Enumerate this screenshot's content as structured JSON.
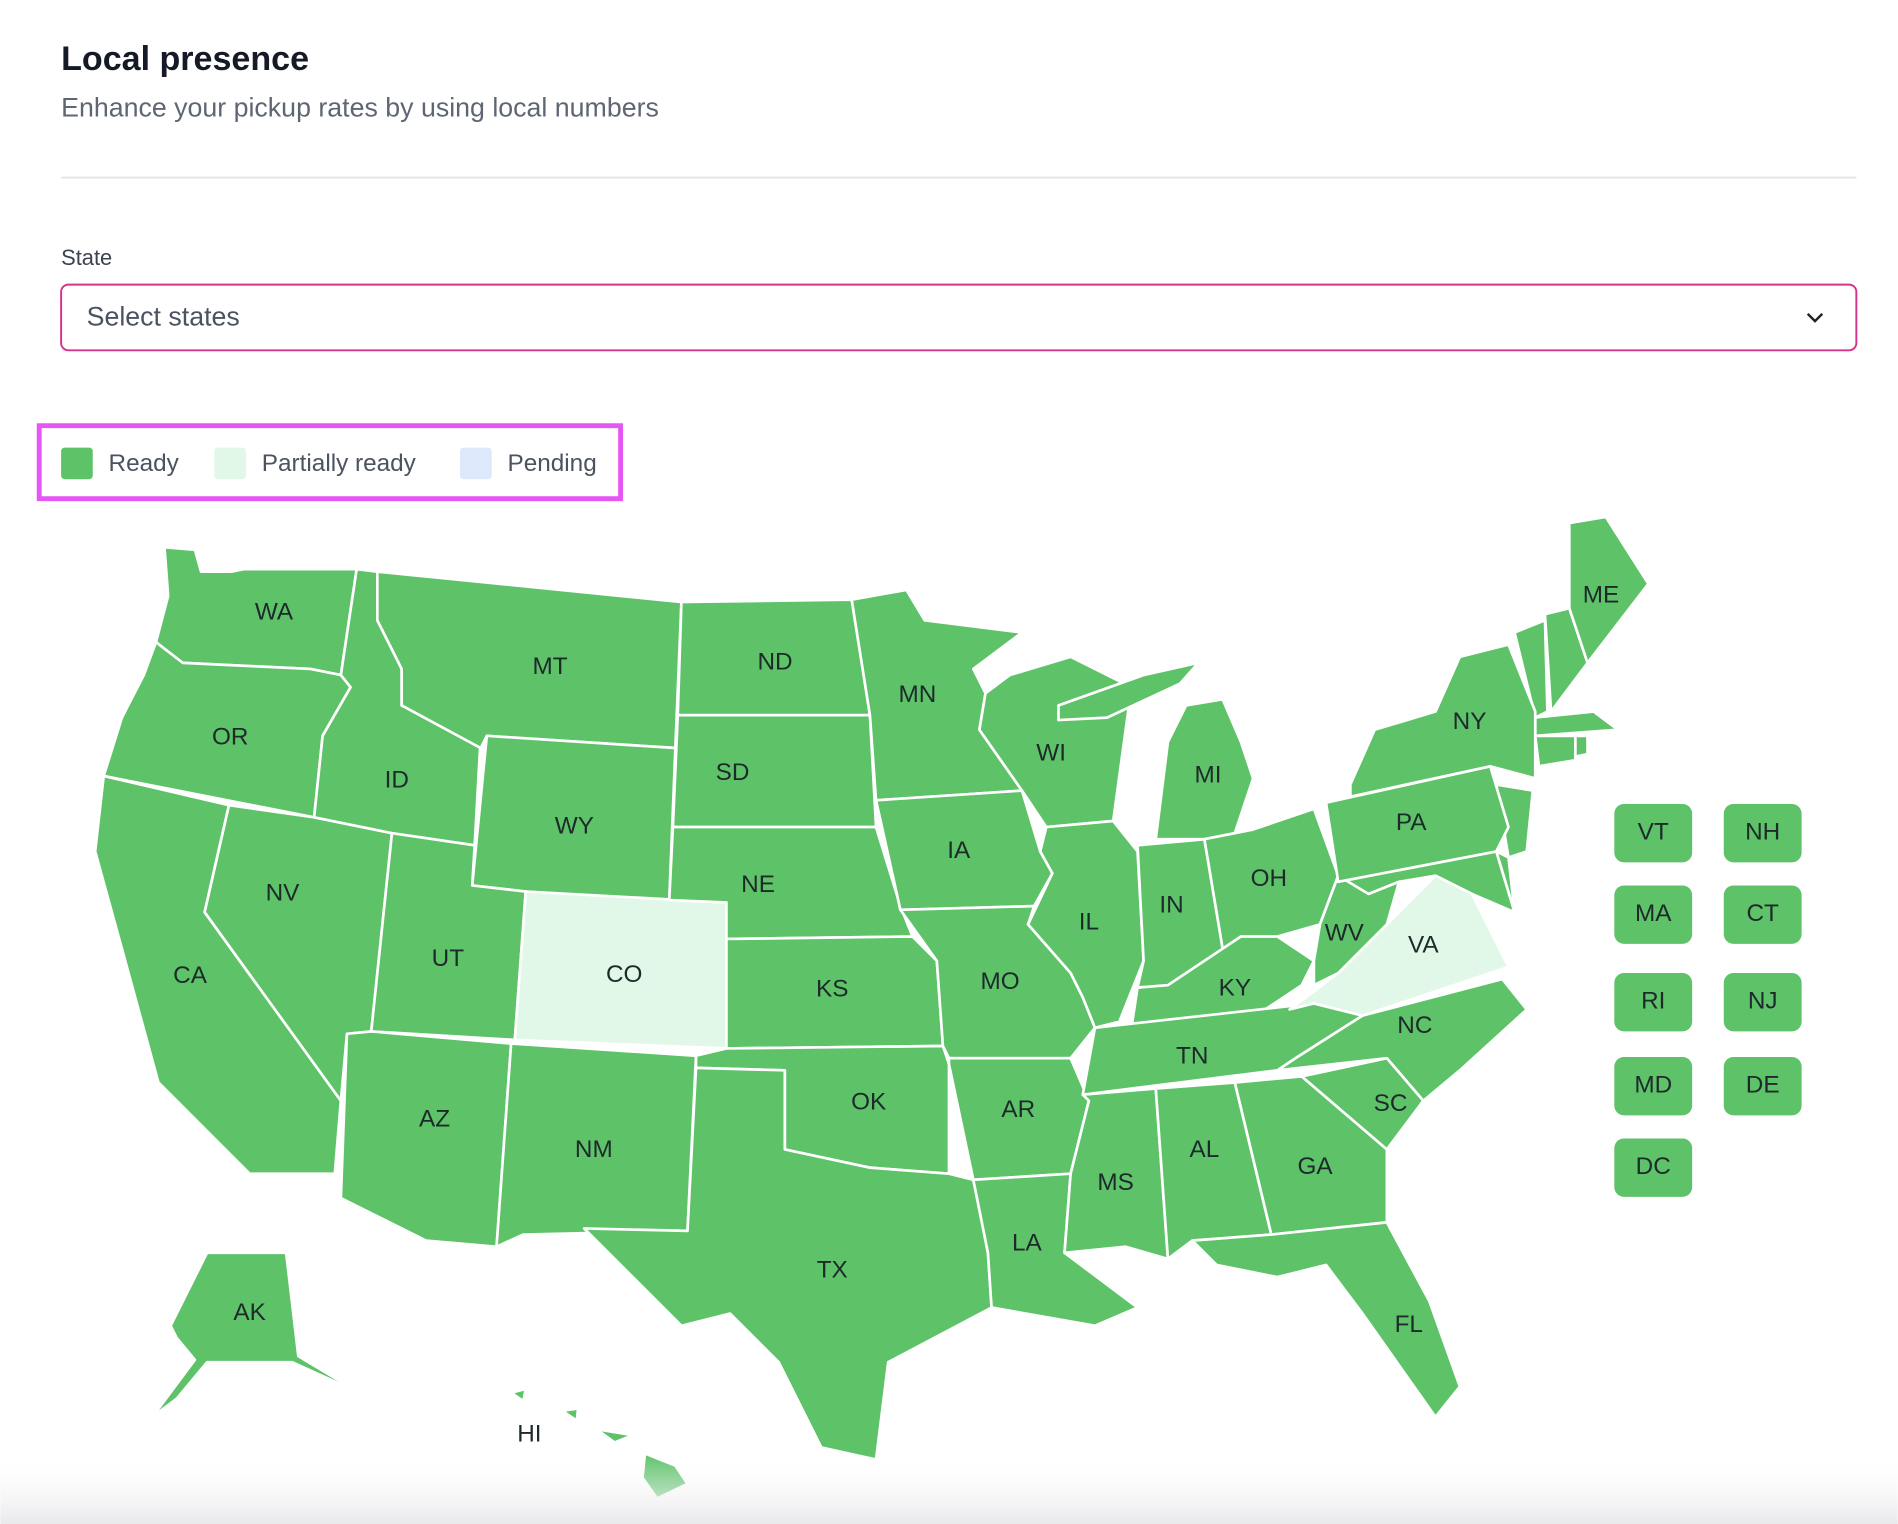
{
  "header": {
    "title": "Local presence",
    "subtitle": "Enhance your pickup rates by using local numbers"
  },
  "form": {
    "label": "State",
    "placeholder": "Select states"
  },
  "legend": [
    {
      "label": "Ready",
      "color": "#5ec269"
    },
    {
      "label": "Partially ready",
      "color": "#e1f8e8"
    },
    {
      "label": "Pending",
      "color": "#dde8fb"
    }
  ],
  "states": [
    {
      "code": "WA",
      "status": "Ready"
    },
    {
      "code": "OR",
      "status": "Ready"
    },
    {
      "code": "CA",
      "status": "Ready"
    },
    {
      "code": "NV",
      "status": "Ready"
    },
    {
      "code": "ID",
      "status": "Ready"
    },
    {
      "code": "MT",
      "status": "Ready"
    },
    {
      "code": "WY",
      "status": "Ready"
    },
    {
      "code": "UT",
      "status": "Ready"
    },
    {
      "code": "CO",
      "status": "Partially ready"
    },
    {
      "code": "AZ",
      "status": "Ready"
    },
    {
      "code": "NM",
      "status": "Ready"
    },
    {
      "code": "ND",
      "status": "Ready"
    },
    {
      "code": "SD",
      "status": "Ready"
    },
    {
      "code": "NE",
      "status": "Ready"
    },
    {
      "code": "KS",
      "status": "Ready"
    },
    {
      "code": "OK",
      "status": "Ready"
    },
    {
      "code": "TX",
      "status": "Ready"
    },
    {
      "code": "MN",
      "status": "Ready"
    },
    {
      "code": "IA",
      "status": "Ready"
    },
    {
      "code": "MO",
      "status": "Ready"
    },
    {
      "code": "AR",
      "status": "Ready"
    },
    {
      "code": "LA",
      "status": "Ready"
    },
    {
      "code": "WI",
      "status": "Ready"
    },
    {
      "code": "IL",
      "status": "Ready"
    },
    {
      "code": "MI",
      "status": "Ready"
    },
    {
      "code": "IN",
      "status": "Ready"
    },
    {
      "code": "OH",
      "status": "Ready"
    },
    {
      "code": "KY",
      "status": "Ready"
    },
    {
      "code": "TN",
      "status": "Ready"
    },
    {
      "code": "MS",
      "status": "Ready"
    },
    {
      "code": "AL",
      "status": "Ready"
    },
    {
      "code": "GA",
      "status": "Ready"
    },
    {
      "code": "FL",
      "status": "Ready"
    },
    {
      "code": "SC",
      "status": "Ready"
    },
    {
      "code": "NC",
      "status": "Ready"
    },
    {
      "code": "VA",
      "status": "Partially ready"
    },
    {
      "code": "WV",
      "status": "Ready"
    },
    {
      "code": "PA",
      "status": "Ready"
    },
    {
      "code": "NY",
      "status": "Ready"
    },
    {
      "code": "ME",
      "status": "Ready"
    },
    {
      "code": "AK",
      "status": "Ready"
    },
    {
      "code": "HI",
      "status": "Ready"
    }
  ],
  "small_states": [
    {
      "code": "VT",
      "status": "Ready"
    },
    {
      "code": "NH",
      "status": "Ready"
    },
    {
      "code": "MA",
      "status": "Ready"
    },
    {
      "code": "CT",
      "status": "Ready"
    },
    {
      "code": "RI",
      "status": "Ready"
    },
    {
      "code": "NJ",
      "status": "Ready"
    },
    {
      "code": "MD",
      "status": "Ready"
    },
    {
      "code": "DE",
      "status": "Ready"
    },
    {
      "code": "DC",
      "status": "Ready"
    }
  ]
}
